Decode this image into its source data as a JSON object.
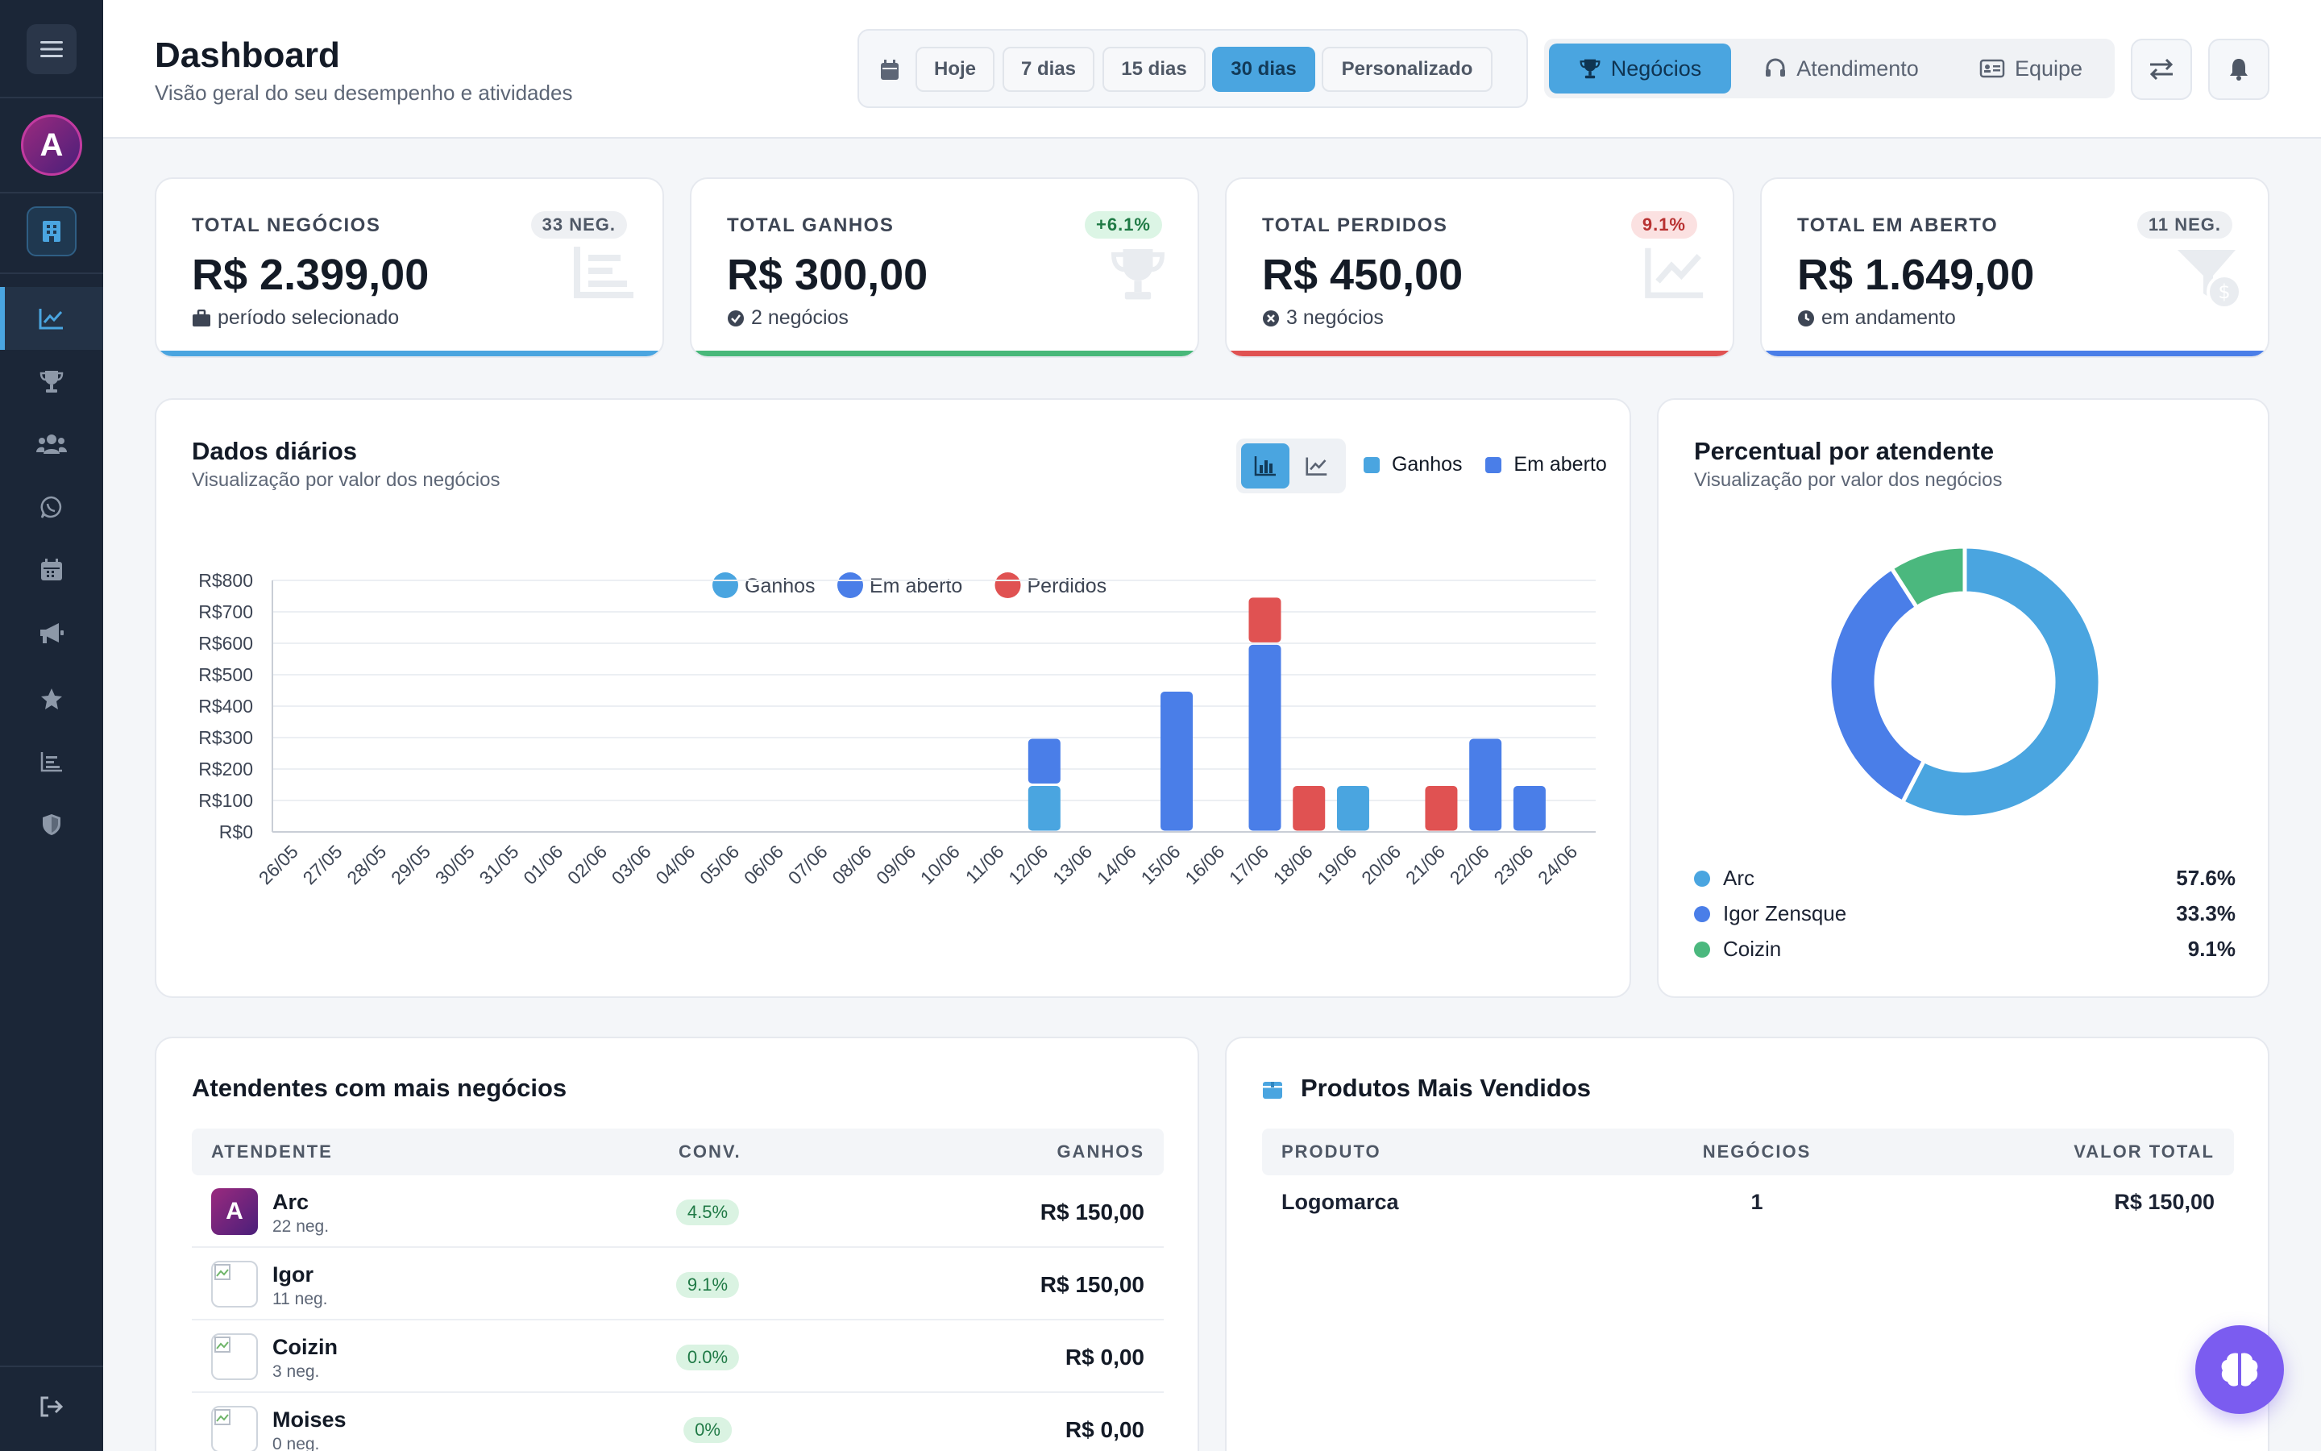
{
  "header": {
    "title": "Dashboard",
    "subtitle": "Visão geral do seu desempenho e atividades",
    "period_buttons": [
      "Hoje",
      "7 dias",
      "15 dias",
      "30 dias",
      "Personalizado"
    ],
    "active_period": "30 dias",
    "tabs": [
      "Negócios",
      "Atendimento",
      "Equipe"
    ],
    "active_tab": "Negócios"
  },
  "sidebar": {
    "logo_letter": "A",
    "items": [
      "chart-line-icon",
      "trophy-icon",
      "users-icon",
      "whatsapp-icon",
      "calendar-icon",
      "megaphone-icon",
      "star-icon",
      "bar-chart-icon",
      "shield-icon"
    ],
    "active_item": "chart-line-icon"
  },
  "kpis": [
    {
      "label": "TOTAL NEGÓCIOS",
      "badge": "33 NEG.",
      "value": "R$ 2.399,00",
      "sub": "período selecionado",
      "color": "#4aa5e0"
    },
    {
      "label": "TOTAL GANHOS",
      "badge": "+6.1%",
      "value": "R$ 300,00",
      "sub": "2 negócios",
      "color": "#48b87a"
    },
    {
      "label": "TOTAL PERDIDOS",
      "badge": "9.1%",
      "value": "R$ 450,00",
      "sub": "3 negócios",
      "color": "#e05252"
    },
    {
      "label": "TOTAL EM ABERTO",
      "badge": "11 NEG.",
      "value": "R$ 1.649,00",
      "sub": "em andamento",
      "color": "#4a7ee8"
    }
  ],
  "daily": {
    "title": "Dados diários",
    "subtitle": "Visualização por valor dos negócios",
    "toggle_legend": [
      "Ganhos",
      "Em aberto"
    ]
  },
  "percent": {
    "title": "Percentual por atendente",
    "subtitle": "Visualização por valor dos negócios",
    "items": [
      {
        "name": "Arc",
        "pct": "57.6%",
        "value": 57.6,
        "color": "#4aa5e0"
      },
      {
        "name": "Igor Zensque",
        "pct": "33.3%",
        "value": 33.3,
        "color": "#4a7ee8"
      },
      {
        "name": "Coizin",
        "pct": "9.1%",
        "value": 9.1,
        "color": "#4bb87e"
      }
    ]
  },
  "attendants": {
    "title": "Atendentes com mais negócios",
    "headers": [
      "ATENDENTE",
      "CONV.",
      "GANHOS"
    ],
    "rows": [
      {
        "name": "Arc",
        "sub": "22 neg.",
        "conv": "4.5%",
        "ganhos": "R$ 150,00"
      },
      {
        "name": "Igor",
        "sub": "11 neg.",
        "conv": "9.1%",
        "ganhos": "R$ 150,00"
      },
      {
        "name": "Coizin",
        "sub": "3 neg.",
        "conv": "0.0%",
        "ganhos": "R$ 0,00"
      },
      {
        "name": "Moises",
        "sub": "0 neg.",
        "conv": "0%",
        "ganhos": "R$ 0,00"
      }
    ]
  },
  "products": {
    "title": "Produtos Mais Vendidos",
    "headers": [
      "PRODUTO",
      "NEGÓCIOS",
      "VALOR TOTAL"
    ],
    "rows": [
      {
        "name": "Logomarca",
        "count": "1",
        "total": "R$ 150,00"
      }
    ]
  },
  "chart_data": {
    "type": "bar",
    "stacked": true,
    "legend": [
      "Ganhos",
      "Em aberto",
      "Perdidos"
    ],
    "categories": [
      "26/05",
      "27/05",
      "28/05",
      "29/05",
      "30/05",
      "31/05",
      "01/06",
      "02/06",
      "03/06",
      "04/06",
      "05/06",
      "06/06",
      "07/06",
      "08/06",
      "09/06",
      "10/06",
      "11/06",
      "12/06",
      "13/06",
      "14/06",
      "15/06",
      "16/06",
      "17/06",
      "18/06",
      "19/06",
      "20/06",
      "21/06",
      "22/06",
      "23/06",
      "24/06"
    ],
    "series": [
      {
        "name": "Ganhos",
        "color": "#4aa5e0",
        "values": [
          0,
          0,
          0,
          0,
          0,
          0,
          0,
          0,
          0,
          0,
          0,
          0,
          0,
          0,
          0,
          0,
          0,
          150,
          0,
          0,
          0,
          0,
          0,
          0,
          150,
          0,
          0,
          0,
          0,
          0
        ]
      },
      {
        "name": "Em aberto",
        "color": "#4a7ee8",
        "values": [
          0,
          0,
          0,
          0,
          0,
          0,
          0,
          0,
          0,
          0,
          0,
          0,
          0,
          0,
          0,
          0,
          0,
          150,
          0,
          0,
          450,
          0,
          599,
          0,
          0,
          0,
          0,
          300,
          150,
          0
        ]
      },
      {
        "name": "Perdidos",
        "color": "#e05252",
        "values": [
          0,
          0,
          0,
          0,
          0,
          0,
          0,
          0,
          0,
          0,
          0,
          0,
          0,
          0,
          0,
          0,
          0,
          0,
          0,
          0,
          0,
          0,
          150,
          150,
          0,
          0,
          150,
          0,
          0,
          0
        ]
      }
    ],
    "y_ticks": [
      "R$0",
      "R$100",
      "R$200",
      "R$300",
      "R$400",
      "R$500",
      "R$600",
      "R$700",
      "R$800"
    ],
    "ylim": [
      0,
      800
    ],
    "grid": true,
    "legend_position": "top-center"
  }
}
